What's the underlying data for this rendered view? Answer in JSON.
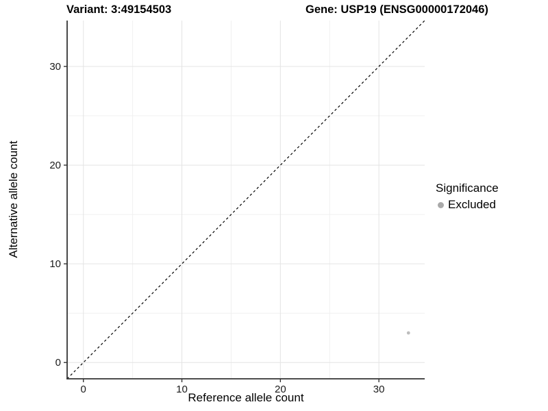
{
  "chart_data": {
    "type": "scatter",
    "titles": [
      "Variant: 3:49154503",
      "Gene: USP19 (ENSG00000172046)"
    ],
    "xlabel": "Reference allele count",
    "ylabel": "Alternative allele count",
    "xlim": [
      -1.65,
      34.65
    ],
    "ylim": [
      -1.65,
      34.65
    ],
    "x_ticks": [
      0,
      10,
      20,
      30
    ],
    "y_ticks": [
      0,
      10,
      20,
      30
    ],
    "x_minor_ticks": [
      5,
      15,
      25
    ],
    "y_minor_ticks": [
      5,
      15,
      25
    ],
    "grid": "major and minor gridlines on white panel",
    "reference_line": {
      "kind": "identity y=x",
      "style": "dashed",
      "color": "#000000"
    },
    "series": [
      {
        "name": "Excluded",
        "color": "#bdbdbd",
        "points": [
          [
            33,
            3
          ]
        ]
      }
    ],
    "legend": {
      "title": "Significance",
      "position": "right",
      "items": [
        {
          "label": "Excluded",
          "color": "#a9a9a9"
        }
      ]
    }
  },
  "style": {
    "background": "#ffffff",
    "grid_major_color": "#e4e4e4",
    "grid_minor_color": "#f0f0f0",
    "axis_line_color": "#333333",
    "tick_label_color": "#1a1a1a",
    "title_color": "#000000",
    "point_color": "#bdbdbd",
    "dashed_line_color": "#000000"
  }
}
